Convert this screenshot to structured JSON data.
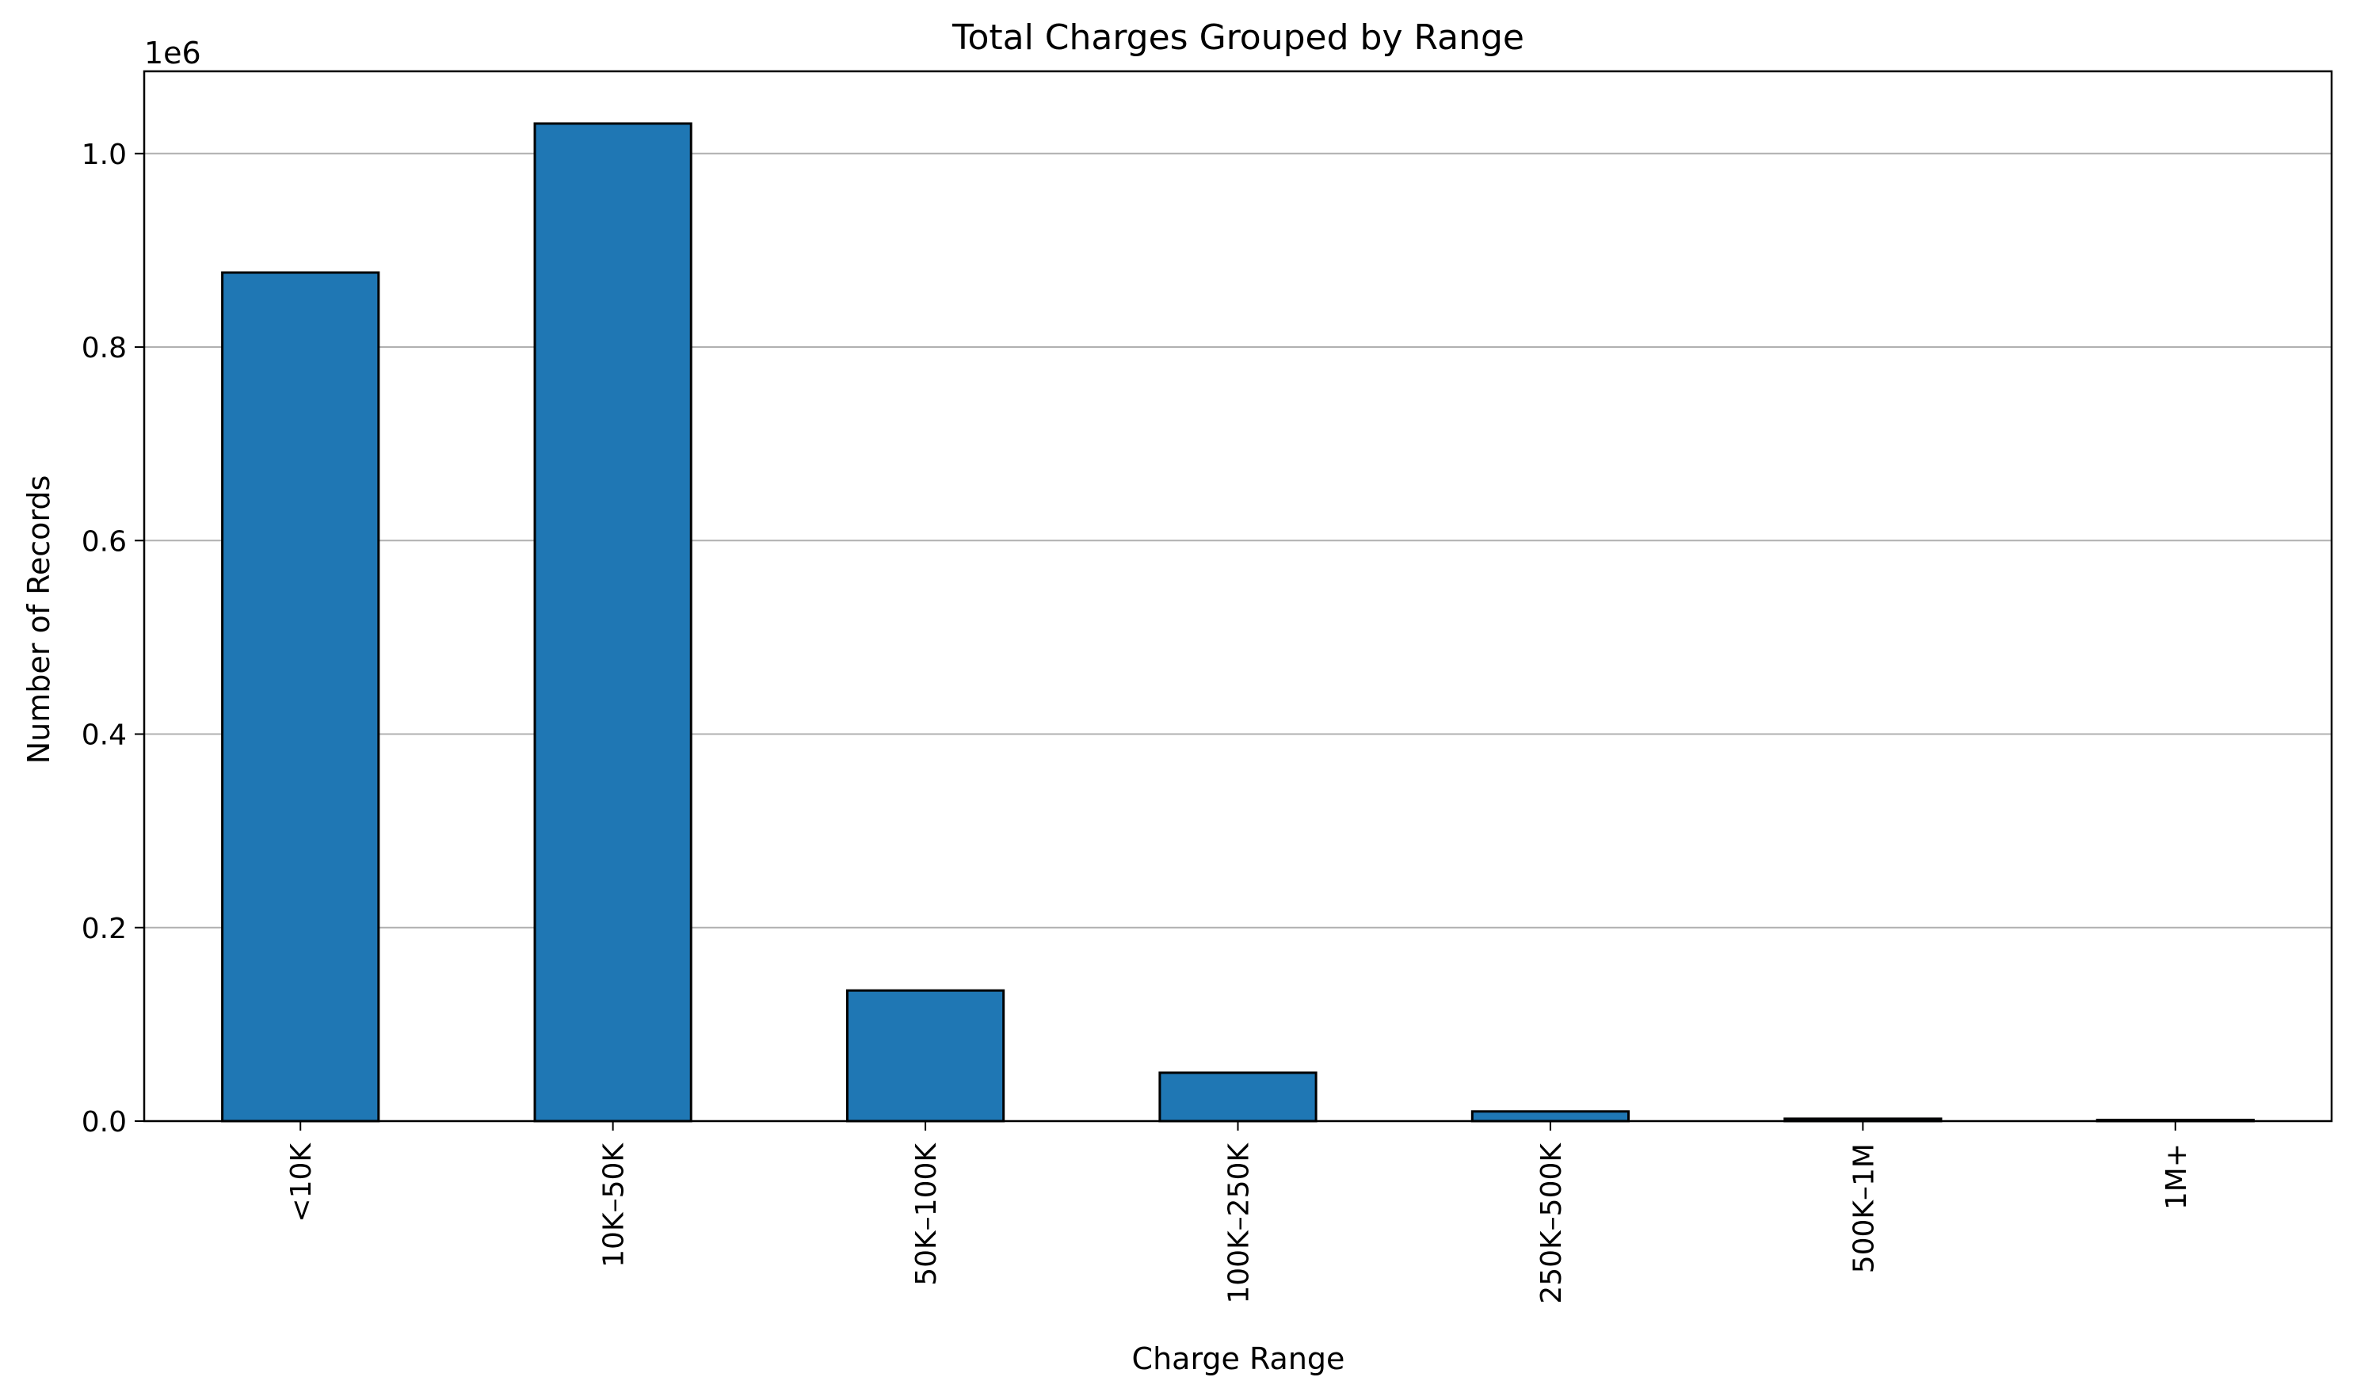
{
  "chart_data": {
    "type": "bar",
    "title": "Total Charges Grouped by Range",
    "xlabel": "Charge Range",
    "ylabel": "Number of Records",
    "y_offset_label": "1e6",
    "categories": [
      "<10K",
      "10K–50K",
      "50K–100K",
      "100K–250K",
      "250K–500K",
      "500K–1M",
      "1M+"
    ],
    "values": [
      877000,
      1031000,
      135000,
      50000,
      10000,
      2500,
      1200
    ],
    "ylim": [
      0,
      1085000
    ],
    "yticks": [
      0,
      200000,
      400000,
      600000,
      800000,
      1000000
    ],
    "ytick_labels": [
      "0.0",
      "0.2",
      "0.4",
      "0.6",
      "0.8",
      "1.0"
    ],
    "grid": "y",
    "colors": {
      "bar": "#1f77b4",
      "edge": "#000000",
      "grid": "#b0b0b0"
    }
  }
}
